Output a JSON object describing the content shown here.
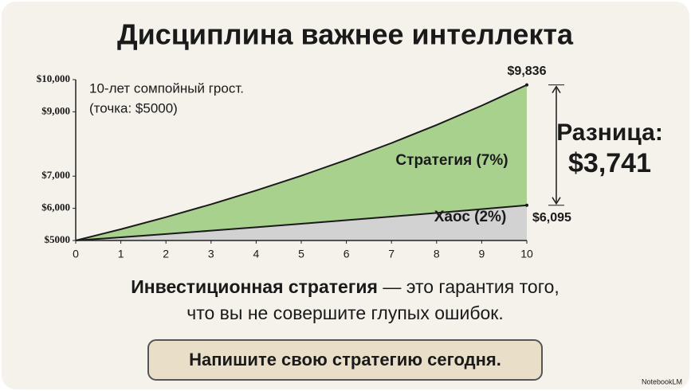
{
  "chart_data": {
    "type": "area",
    "title": "Дисциплина важнее интеллекта",
    "annotation": [
      "10-лет сомпойный грост.",
      "(точка: $5000)"
    ],
    "x": [
      0,
      1,
      2,
      3,
      4,
      5,
      6,
      7,
      8,
      9,
      10
    ],
    "xlim": [
      0,
      10
    ],
    "xticks": [
      0,
      1,
      2,
      3,
      4,
      5,
      6,
      7,
      8,
      9,
      10
    ],
    "ylim": [
      5000,
      10000
    ],
    "yticks": [
      {
        "value": 5000,
        "label": "$5000"
      },
      {
        "value": 6000,
        "label": "$6,000"
      },
      {
        "value": 7000,
        "label": "$7,000"
      },
      {
        "value": 9000,
        "label": "$9,000"
      },
      {
        "value": 10000,
        "label": "$10,000"
      }
    ],
    "series": [
      {
        "name": "Хаос (2%)",
        "color": "#d2d2d2",
        "values": [
          5000,
          5100,
          5202,
          5306,
          5412,
          5520,
          5631,
          5743,
          5858,
          5975,
          6095
        ],
        "value_labels": [
          null,
          null,
          null,
          null,
          null,
          null,
          null,
          null,
          null,
          null,
          "$6,095"
        ]
      },
      {
        "name": "Стратегия (7%)",
        "color": "#a9d18e",
        "values": [
          5000,
          5350,
          5725,
          6125,
          6554,
          7013,
          7504,
          8029,
          8591,
          9192,
          9836
        ],
        "value_labels": [
          null,
          null,
          null,
          null,
          null,
          null,
          null,
          null,
          null,
          null,
          "$9,836"
        ]
      }
    ],
    "difference_label": "Разница:",
    "difference_value": "$3,741"
  },
  "caption": {
    "bold": "Инвестиционная стратегия",
    "rest": " — это гарантия того,",
    "line2": "что вы не совершите глупых ошибок."
  },
  "button": "Напишите свою стратегию сегодня.",
  "watermark": "NotebookLM"
}
